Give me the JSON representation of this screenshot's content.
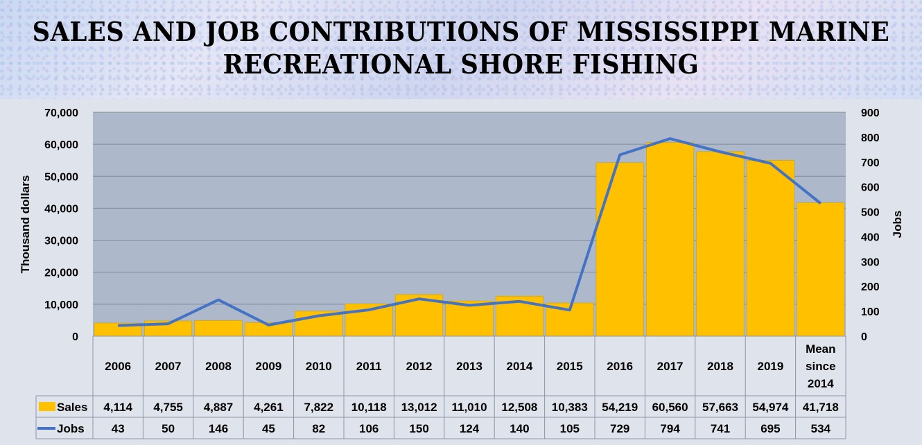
{
  "chart_data": {
    "type": "bar",
    "title": "SALES AND JOB CONTRIBUTIONS OF MISSISSIPPI MARINE RECREATIONAL SHORE FISHING",
    "categories": [
      "2006",
      "2007",
      "2008",
      "2009",
      "2010",
      "2011",
      "2012",
      "2013",
      "2014",
      "2015",
      "2016",
      "2017",
      "2018",
      "2019",
      "Mean since 2014"
    ],
    "series": [
      {
        "name": "Sales",
        "type": "bar",
        "axis": "left",
        "color": "#ffc000",
        "values": [
          4114,
          4755,
          4887,
          4261,
          7822,
          10118,
          13012,
          11010,
          12508,
          10383,
          54219,
          60560,
          57663,
          54974,
          41718
        ],
        "labels": [
          "4,114",
          "4,755",
          "4,887",
          "4,261",
          "7,822",
          "10,118",
          "13,012",
          "11,010",
          "12,508",
          "10,383",
          "54,219",
          "60,560",
          "57,663",
          "54,974",
          "41,718"
        ]
      },
      {
        "name": "Jobs",
        "type": "line",
        "axis": "right",
        "color": "#4472c4",
        "values": [
          43,
          50,
          146,
          45,
          82,
          106,
          150,
          124,
          140,
          105,
          729,
          794,
          741,
          695,
          534
        ]
      }
    ],
    "ylabel": "Thousand dollars",
    "y2label": "Jobs",
    "ylim": [
      0,
      70000
    ],
    "y2lim": [
      0,
      900
    ],
    "yticks": [
      "0",
      "10,000",
      "20,000",
      "30,000",
      "40,000",
      "50,000",
      "60,000",
      "70,000"
    ],
    "y2ticks": [
      "0",
      "100",
      "200",
      "300",
      "400",
      "500",
      "600",
      "700",
      "800",
      "900"
    ],
    "grid": true,
    "legend": "data-table",
    "plot_background": "#adb9ca"
  }
}
